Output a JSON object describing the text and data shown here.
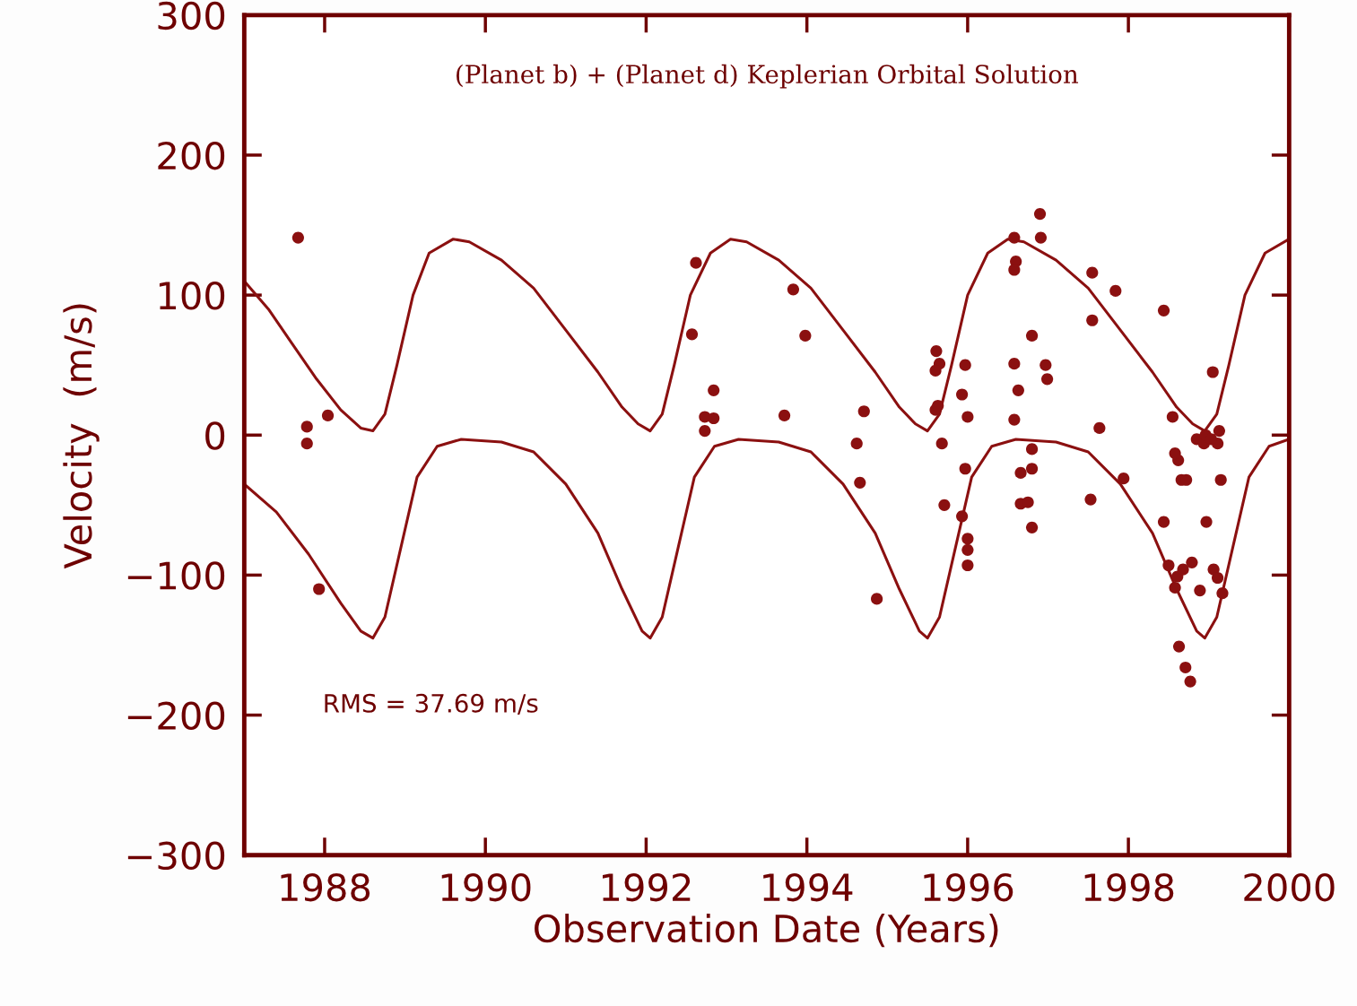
{
  "chart_data": {
    "type": "line",
    "title": "(Planet b) + (Planet d) Keplerian Orbital Solution",
    "xlabel": "Observation Date (Years)",
    "ylabel": "Velocity  (m/s)",
    "xlim": [
      1987,
      2000
    ],
    "xticks": [
      1988,
      1990,
      1992,
      1994,
      1996,
      1998,
      2000
    ],
    "ylim": [
      -300,
      300
    ],
    "yticks": [
      -300,
      -200,
      -100,
      0,
      100,
      200,
      300
    ],
    "grid": false,
    "line_style": "solid",
    "annotations": [
      "RMS = 37.69 m/s"
    ],
    "series": [
      {
        "color": "#8b1010",
        "x": [
          1987.0,
          1987.3,
          1987.6,
          1987.9,
          1988.2,
          1988.45,
          1988.6,
          1988.75,
          1988.9,
          1989.1,
          1989.3,
          1989.6,
          1989.8,
          1990.2,
          1990.6,
          1991.0,
          1991.4,
          1991.7,
          1991.9,
          1992.05,
          1992.2,
          1992.35,
          1992.55,
          1992.8,
          1993.05,
          1993.25,
          1993.65,
          1994.05,
          1994.45,
          1994.85,
          1995.15,
          1995.35,
          1995.5,
          1995.65,
          1995.8,
          1996.0,
          1996.25,
          1996.5,
          1996.7,
          1997.1,
          1997.5,
          1997.9,
          1998.3,
          1998.6,
          1998.8,
          1998.95,
          1999.1,
          1999.25,
          1999.45,
          1999.7,
          2000.0
        ],
        "values": [
          110,
          90,
          65,
          40,
          18,
          5,
          3,
          15,
          50,
          100,
          130,
          140,
          138,
          125,
          105,
          75,
          45,
          20,
          8,
          3,
          15,
          50,
          100,
          130,
          140,
          138,
          125,
          105,
          75,
          45,
          20,
          8,
          3,
          15,
          50,
          100,
          130,
          140,
          138,
          125,
          105,
          75,
          45,
          20,
          8,
          3,
          15,
          50,
          100,
          130,
          140
        ]
      },
      {
        "color": "#8b1010",
        "x": [
          1987.0,
          1987.4,
          1987.8,
          1988.2,
          1988.45,
          1988.6,
          1988.75,
          1988.95,
          1989.15,
          1989.4,
          1989.7,
          1990.2,
          1990.6,
          1991.0,
          1991.4,
          1991.7,
          1991.95,
          1992.05,
          1992.2,
          1992.4,
          1992.6,
          1992.85,
          1993.15,
          1993.65,
          1994.05,
          1994.45,
          1994.85,
          1995.15,
          1995.4,
          1995.5,
          1995.65,
          1995.85,
          1996.05,
          1996.3,
          1996.6,
          1997.1,
          1997.5,
          1997.9,
          1998.3,
          1998.6,
          1998.85,
          1998.95,
          1999.1,
          1999.3,
          1999.5,
          1999.75,
          2000.0
        ],
        "values": [
          -35,
          -55,
          -85,
          -120,
          -140,
          -145,
          -130,
          -80,
          -30,
          -8,
          -3,
          -5,
          -12,
          -35,
          -70,
          -110,
          -140,
          -145,
          -130,
          -80,
          -30,
          -8,
          -3,
          -5,
          -12,
          -35,
          -70,
          -110,
          -140,
          -145,
          -130,
          -80,
          -30,
          -8,
          -3,
          -5,
          -12,
          -35,
          -70,
          -110,
          -140,
          -145,
          -130,
          -80,
          -30,
          -8,
          -3
        ]
      },
      {
        "type": "scatter",
        "color": "#8b1010",
        "marker": "circle",
        "x": [
          1987.67,
          1987.78,
          1987.78,
          1988.04,
          1987.93,
          1992.62,
          1992.57,
          1992.84,
          1992.73,
          1992.84,
          1992.73,
          1993.83,
          1993.98,
          1993.72,
          1994.71,
          1994.62,
          1994.66,
          1994.87,
          1995.6,
          1995.68,
          1995.71,
          1995.61,
          1995.65,
          1995.6,
          1995.63,
          1995.97,
          1995.93,
          1996.0,
          1996.0,
          1996.0,
          1995.93,
          1996.0,
          1995.97,
          1996.58,
          1996.6,
          1996.58,
          1996.58,
          1996.58,
          1996.63,
          1996.66,
          1996.66,
          1996.75,
          1996.8,
          1996.8,
          1996.8,
          1996.8,
          1996.9,
          1996.91,
          1996.97,
          1996.99,
          1997.55,
          1997.55,
          1997.64,
          1997.53,
          1997.84,
          1997.94,
          1998.44,
          1998.44,
          1998.55,
          1998.62,
          1998.66,
          1998.72,
          1998.58,
          1998.5,
          1998.58,
          1998.61,
          1998.68,
          1998.79,
          1998.63,
          1998.71,
          1998.77,
          1998.89,
          1998.97,
          1998.85,
          1998.94,
          1999.05,
          1999.11,
          1999.13,
          1999.15,
          1999.06,
          1999.11,
          1999.17,
          1998.96,
          1999.03
        ],
        "values": [
          141,
          6,
          -6,
          14,
          -110,
          123,
          72,
          32,
          13,
          12,
          3,
          104,
          71,
          14,
          17,
          -6,
          -34,
          -117,
          18,
          -6,
          -50,
          60,
          51,
          46,
          21,
          -24,
          -58,
          -74,
          -82,
          -93,
          29,
          13,
          50,
          141,
          124,
          118,
          51,
          11,
          32,
          -27,
          -49,
          -48,
          -24,
          -10,
          -66,
          71,
          158,
          141,
          50,
          40,
          116,
          82,
          5,
          -46,
          103,
          -31,
          89,
          -62,
          13,
          -18,
          -32,
          -32,
          -13,
          -93,
          -109,
          -101,
          -96,
          -91,
          -151,
          -166,
          -176,
          -111,
          -62,
          -3,
          -6,
          45,
          -6,
          3,
          -32,
          -96,
          -102,
          -113,
          0,
          -3
        ]
      }
    ]
  }
}
